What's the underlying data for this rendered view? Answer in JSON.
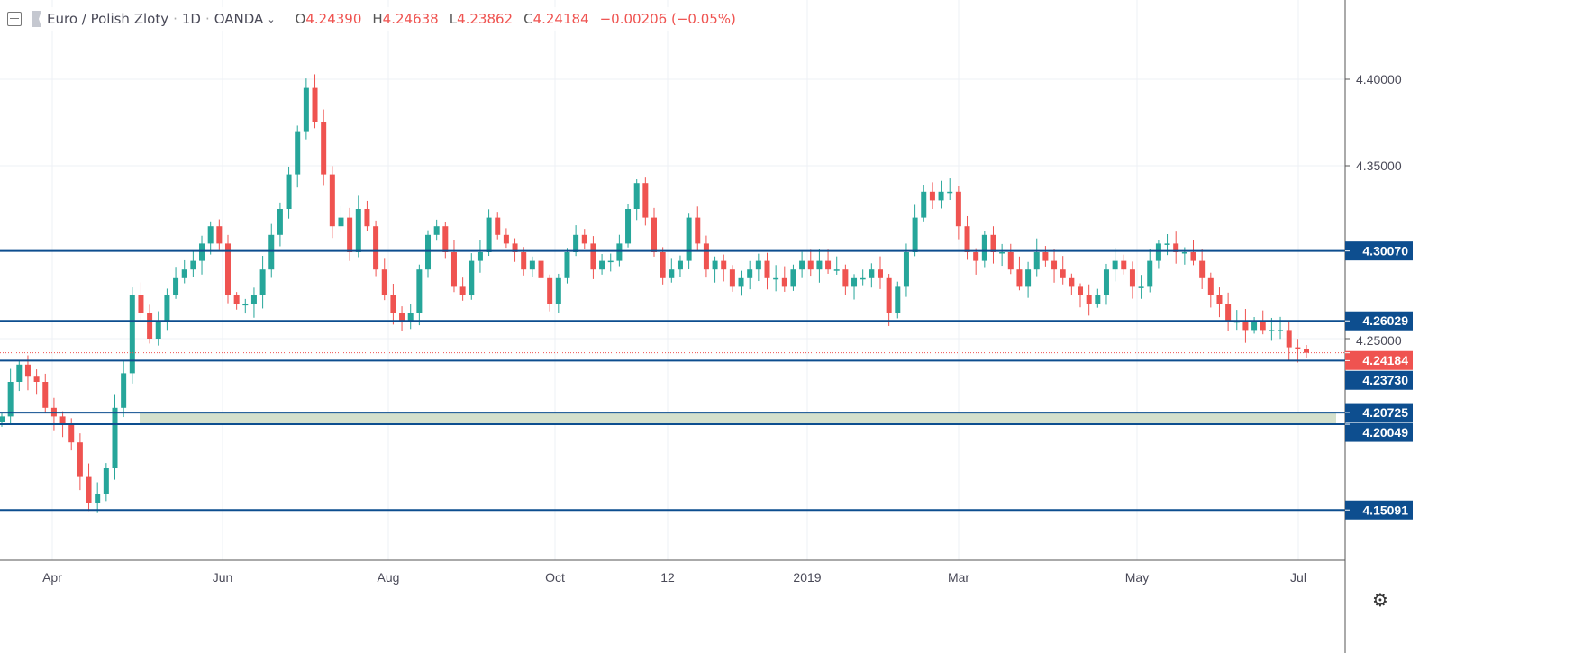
{
  "header": {
    "symbol": "Euro / Polish Zloty",
    "interval": "1D",
    "source": "OANDA",
    "open_label": "O",
    "open": "4.24390",
    "high_label": "H",
    "high": "4.24638",
    "low_label": "L",
    "low": "4.23862",
    "close_label": "C",
    "close": "4.24184",
    "change": "−0.00206 (−0.05%)"
  },
  "colors": {
    "up": "#26a69a",
    "down": "#ef5350",
    "level": "#0d4e8f",
    "zone": "#d4e0cc",
    "grid": "#eef1f5"
  },
  "chart_data": {
    "type": "candlestick",
    "title": "Euro / Polish Zloty, 1D, OANDA",
    "ylim": [
      4.125,
      4.43
    ],
    "y_ticks": [
      "4.40000",
      "4.35000",
      "4.25000"
    ],
    "y_tick_values": [
      4.4,
      4.35,
      4.25
    ],
    "x_ticks": [
      "Apr",
      "Jun",
      "Aug",
      "Oct",
      "12",
      "2019",
      "Mar",
      "May",
      "Jul"
    ],
    "closes": [
      4.205,
      4.225,
      4.235,
      4.228,
      4.225,
      4.21,
      4.205,
      4.2,
      4.19,
      4.17,
      4.155,
      4.16,
      4.175,
      4.21,
      4.23,
      4.275,
      4.265,
      4.25,
      4.26,
      4.275,
      4.285,
      4.29,
      4.295,
      4.305,
      4.315,
      4.305,
      4.275,
      4.27,
      4.27,
      4.275,
      4.29,
      4.31,
      4.325,
      4.345,
      4.37,
      4.395,
      4.375,
      4.345,
      4.315,
      4.32,
      4.3,
      4.325,
      4.315,
      4.29,
      4.275,
      4.265,
      4.26,
      4.265,
      4.29,
      4.31,
      4.315,
      4.3,
      4.28,
      4.275,
      4.295,
      4.3,
      4.32,
      4.31,
      4.305,
      4.3,
      4.29,
      4.295,
      4.285,
      4.27,
      4.285,
      4.3,
      4.31,
      4.305,
      4.29,
      4.295,
      4.295,
      4.305,
      4.325,
      4.34,
      4.32,
      4.3,
      4.285,
      4.29,
      4.295,
      4.32,
      4.305,
      4.29,
      4.295,
      4.29,
      4.28,
      4.285,
      4.29,
      4.295,
      4.285,
      4.285,
      4.28,
      4.29,
      4.295,
      4.29,
      4.295,
      4.29,
      4.29,
      4.28,
      4.285,
      4.285,
      4.29,
      4.285,
      4.265,
      4.28,
      4.3,
      4.32,
      4.335,
      4.33,
      4.335,
      4.335,
      4.315,
      4.3,
      4.295,
      4.31,
      4.3,
      4.3,
      4.29,
      4.28,
      4.29,
      4.3,
      4.295,
      4.29,
      4.285,
      4.28,
      4.275,
      4.27,
      4.275,
      4.29,
      4.295,
      4.29,
      4.28,
      4.28,
      4.295,
      4.305,
      4.305,
      4.3,
      4.3,
      4.295,
      4.285,
      4.275,
      4.27,
      4.26,
      4.26,
      4.255,
      4.26,
      4.255,
      4.255,
      4.255,
      4.245,
      4.2439,
      4.24184
    ],
    "last_candle": {
      "open": 4.2439,
      "high": 4.24638,
      "low": 4.23862,
      "close": 4.24184
    },
    "levels": [
      {
        "value": 4.3007,
        "label": "4.30070"
      },
      {
        "value": 4.26029,
        "label": "4.26029"
      },
      {
        "value": 4.2373,
        "label": "4.23730"
      },
      {
        "value": 4.20725,
        "label": "4.20725"
      },
      {
        "value": 4.20049,
        "label": "4.20049"
      },
      {
        "value": 4.15091,
        "label": "4.15091"
      }
    ],
    "zone": [
      4.20049,
      4.20725
    ],
    "current_price": {
      "value": 4.24184,
      "label": "4.24184"
    },
    "grid": true
  }
}
